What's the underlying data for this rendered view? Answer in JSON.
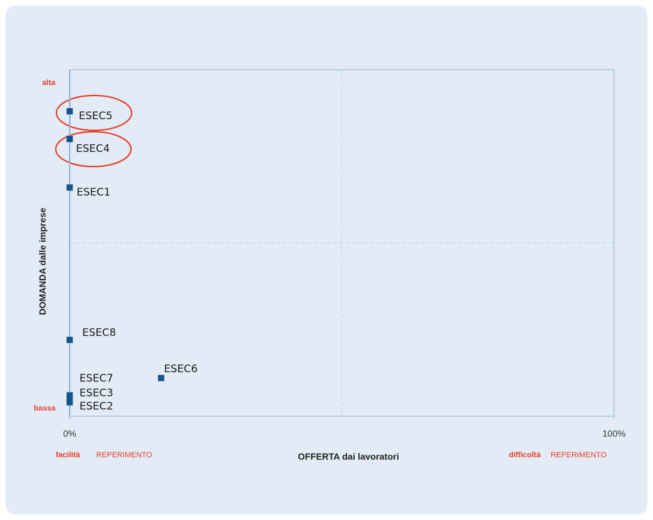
{
  "chart_data": {
    "type": "scatter",
    "x_label": "OFFERTA dai lavoratori",
    "y_label": "DOMANDA dalle imprese",
    "labels": [
      "ESEC1",
      "ESEC2",
      "ESEC3",
      "ESEC4",
      "ESEC5",
      "ESEC6",
      "ESEC7",
      "ESEC8"
    ],
    "x": [
      0,
      0,
      0,
      0,
      0,
      16.8,
      0,
      0
    ],
    "values": [
      66,
      4,
      5,
      80,
      88,
      11,
      6,
      22
    ],
    "color": "#14548a",
    "xlim": [
      0,
      100
    ],
    "ylim": [
      0,
      100
    ],
    "xticks": [
      {
        "value": 0,
        "label": "0%"
      },
      {
        "value": 100,
        "label": "100%"
      }
    ],
    "x_grid_lines": [
      50
    ],
    "y_grid_lines": [
      50
    ],
    "annotations": {
      "y_top": "alta",
      "y_bottom": "bassa",
      "x_left_bold": "facilità",
      "x_left": "REPERIMENTO",
      "x_right_bold": "difficoltà",
      "x_right": "REPERIMENTO"
    }
  }
}
